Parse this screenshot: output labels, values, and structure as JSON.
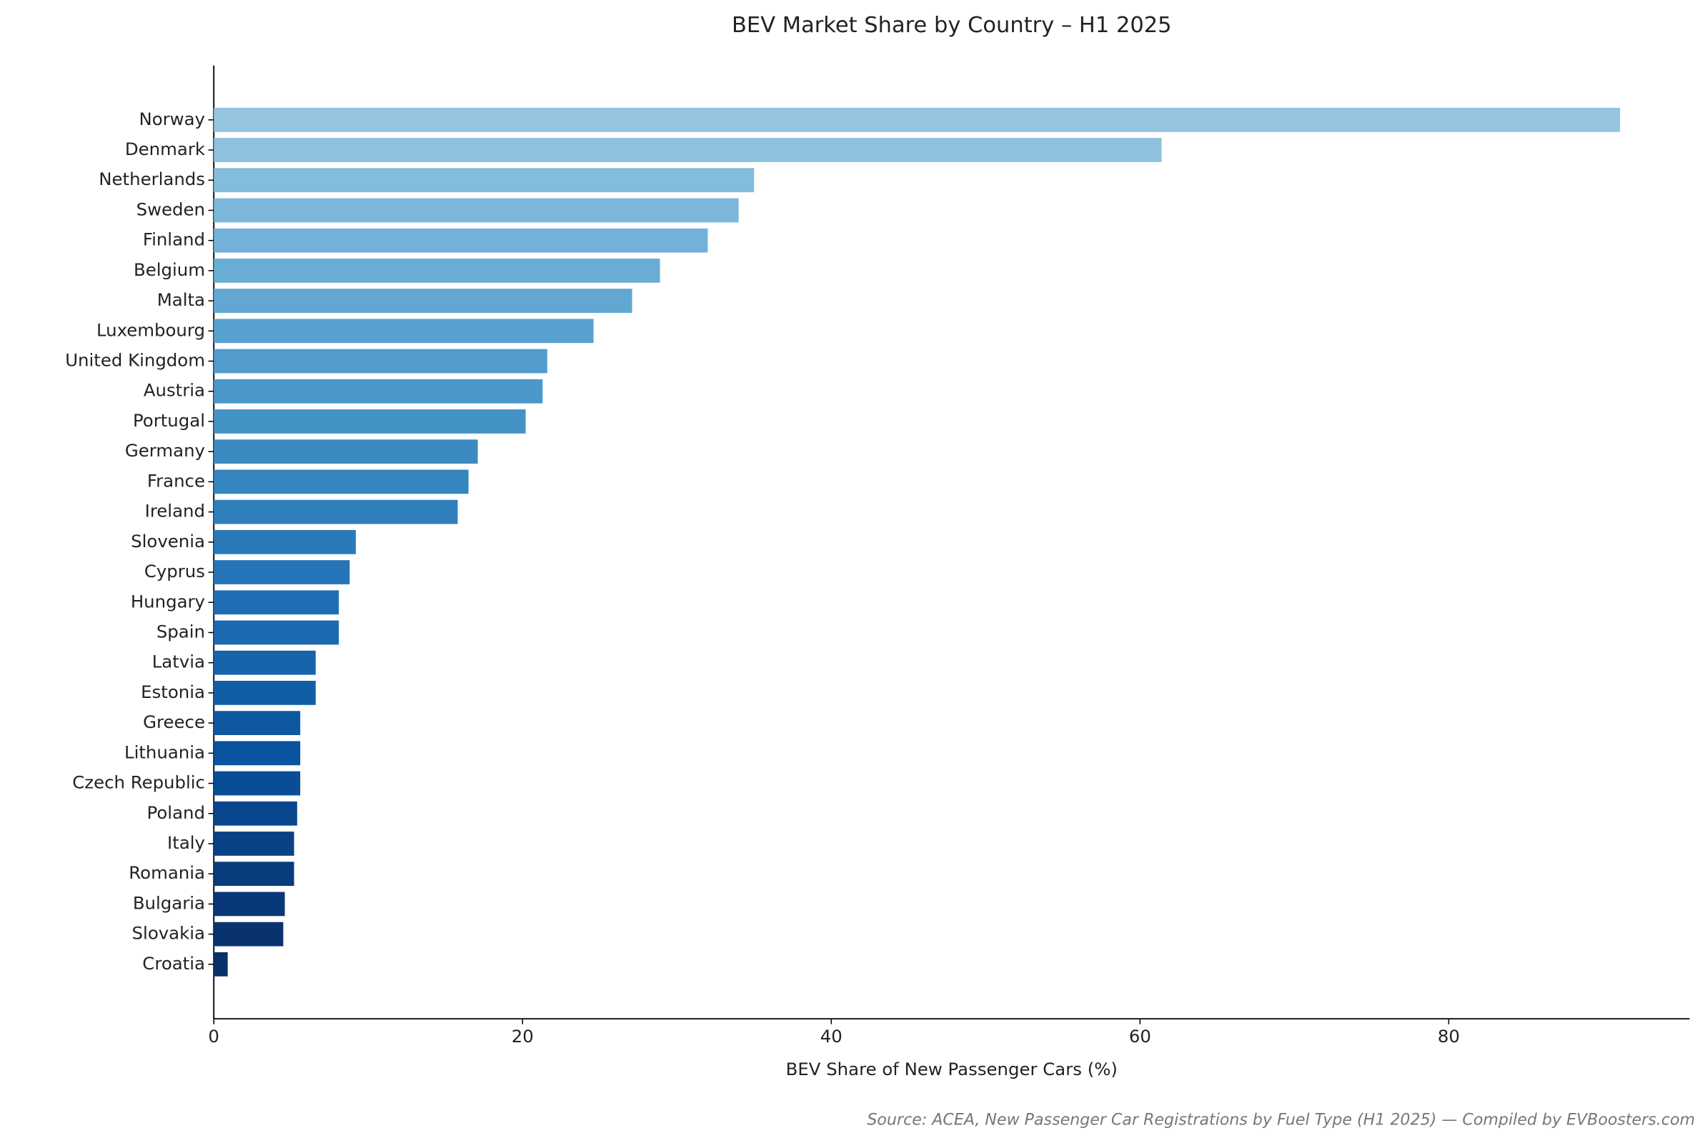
{
  "chart_data": {
    "type": "barh",
    "title": "BEV Market Share by Country – H1 2025",
    "x_label": "BEV Share of New Passenger Cars (%)",
    "source": "Source: ACEA, New Passenger Car Registrations by Fuel Type (H1 2025) — Compiled by EVBoosters.com",
    "categories": [
      "Norway",
      "Denmark",
      "Netherlands",
      "Sweden",
      "Finland",
      "Belgium",
      "Malta",
      "Luxembourg",
      "United Kingdom",
      "Austria",
      "Portugal",
      "Germany",
      "France",
      "Ireland",
      "Slovenia",
      "Cyprus",
      "Hungary",
      "Spain",
      "Latvia",
      "Estonia",
      "Greece",
      "Lithuania",
      "Czech Republic",
      "Poland",
      "Italy",
      "Romania",
      "Bulgaria",
      "Slovakia",
      "Croatia"
    ],
    "values": [
      91.1,
      61.4,
      35.0,
      34.0,
      32.0,
      28.9,
      27.1,
      24.6,
      21.6,
      21.3,
      20.2,
      17.1,
      16.5,
      15.8,
      9.2,
      8.8,
      8.1,
      8.1,
      6.6,
      6.6,
      5.6,
      5.6,
      5.6,
      5.4,
      5.2,
      5.2,
      4.6,
      4.5,
      0.9
    ],
    "colors": [
      "#94c4df",
      "#8dc1dd",
      "#84bcdb",
      "#7cb7da",
      "#72b2d8",
      "#69add5",
      "#61a7d2",
      "#58a1cf",
      "#519ccc",
      "#4a98c9",
      "#4292c6",
      "#3b8bc2",
      "#3585bf",
      "#2f7fbc",
      "#2a7ab9",
      "#2474b7",
      "#1f6eb3",
      "#1b69af",
      "#1764ab",
      "#125ea6",
      "#0e58a2",
      "#0a539e",
      "#084d96",
      "#08478d",
      "#084184",
      "#083c7d",
      "#083877",
      "#08336f",
      "#08306b"
    ],
    "xlim": [
      0,
      95.6
    ],
    "xticks": [
      0,
      20,
      40,
      60,
      80
    ],
    "grid": false
  }
}
